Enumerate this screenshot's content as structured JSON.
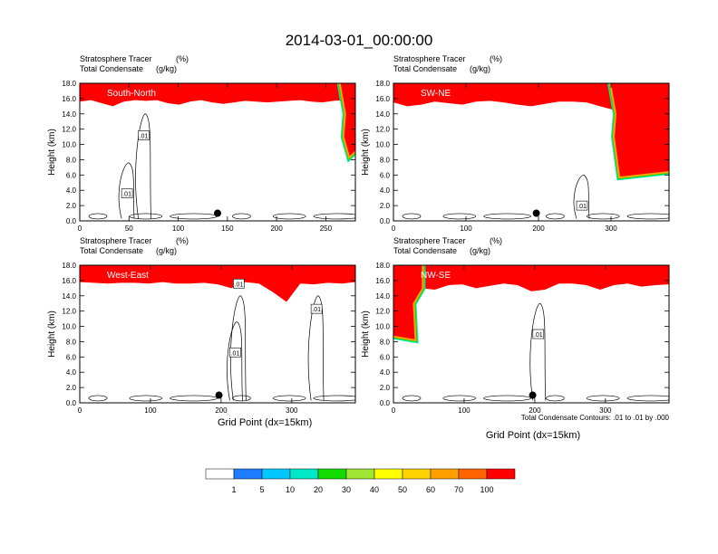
{
  "figure_title": "2014-03-01_00:00:00",
  "panel_header": {
    "line1_label": "Stratosphere Tracer",
    "line1_unit": "(%)",
    "line2_label": "Total Condensate",
    "line2_unit": "(g/kg)"
  },
  "y_axis_label": "Height (km)",
  "x_axis_label": "Grid Point (dx=15km)",
  "contour_note": "Total Condensate Contours: .01 to .01 by .000",
  "colors": [
    "#ffffff",
    "#1e7cff",
    "#00c8ff",
    "#00e8c8",
    "#28e678",
    "#14dc00",
    "#a0e632",
    "#ffff00",
    "#ffd200",
    "#ffa000",
    "#ff6400",
    "#ff0000"
  ],
  "colorbar": {
    "labels": [
      "1",
      "5",
      "10",
      "20",
      "30",
      "40",
      "50",
      "60",
      "70",
      "100"
    ]
  },
  "chart_data": [
    {
      "type": "heatmap",
      "title": "South-North",
      "x_ticks": [
        0,
        50,
        100,
        150,
        200,
        250
      ],
      "xlim": [
        0,
        280
      ],
      "y_ticks": [
        "0.0",
        "2.0",
        "4.0",
        "6.0",
        "8.0",
        "10.0",
        "12.0",
        "14.0",
        "16.0",
        "18.0"
      ],
      "ylim": [
        0,
        18
      ],
      "tracer_base_km": [
        15.6,
        15.8,
        15.4,
        15.0,
        15.6,
        15.8,
        15.7,
        15.8,
        15.4,
        15.2,
        15.6,
        15.8,
        15.5,
        15.3,
        15.5,
        15.7,
        15.6,
        15.5,
        15.6,
        15.7,
        15.8,
        15.6,
        15.5,
        15.7,
        15.8,
        15.8
      ],
      "intrusion": {
        "x": [
          265,
          280
        ],
        "bottom_km": 8.5
      },
      "contour_labels": [
        {
          "text": ".01",
          "x": 65,
          "y": 11.2
        },
        {
          "text": ".01",
          "x": 48,
          "y": 3.6
        }
      ],
      "marker": {
        "x": 140,
        "y": 1.0
      }
    },
    {
      "type": "heatmap",
      "title": "SW-NE",
      "x_ticks": [
        0,
        100,
        200,
        300
      ],
      "xlim": [
        0,
        380
      ],
      "y_ticks": [
        "0.0",
        "2.0",
        "4.0",
        "6.0",
        "8.0",
        "10.0",
        "12.0",
        "14.0",
        "16.0",
        "18.0"
      ],
      "ylim": [
        0,
        18
      ],
      "tracer_base_km": [
        15.5,
        15.0,
        15.2,
        15.6,
        15.4,
        15.2,
        15.6,
        15.7,
        15.5,
        15.2,
        15.0,
        15.3,
        15.6,
        15.6,
        15.5,
        15.0,
        14.5,
        15.2,
        15.4,
        15.2,
        15.3
      ],
      "intrusion": {
        "x": [
          300,
          380
        ],
        "bottom_km": 5.8
      },
      "contour_labels": [
        {
          "text": ".01",
          "x": 260,
          "y": 2.0
        }
      ],
      "marker": {
        "x": 197,
        "y": 1.0
      }
    },
    {
      "type": "heatmap",
      "title": "West-East",
      "x_ticks": [
        0,
        100,
        200,
        300
      ],
      "xlim": [
        0,
        390
      ],
      "y_ticks": [
        "0.0",
        "2.0",
        "4.0",
        "6.0",
        "8.0",
        "10.0",
        "12.0",
        "14.0",
        "16.0",
        "18.0"
      ],
      "ylim": [
        0,
        18
      ],
      "tracer_base_km": [
        15.8,
        15.7,
        15.6,
        15.7,
        15.7,
        15.6,
        15.8,
        15.6,
        15.6,
        15.7,
        15.5,
        15.0,
        15.8,
        15.6,
        14.5,
        13.2,
        15.6,
        15.5,
        15.7,
        15.6,
        15.8
      ],
      "contour_labels": [
        {
          "text": ".01",
          "x": 225,
          "y": 15.6
        },
        {
          "text": ".01",
          "x": 335,
          "y": 12.3
        },
        {
          "text": ".01",
          "x": 220,
          "y": 6.6
        }
      ],
      "marker": {
        "x": 197,
        "y": 1.0
      }
    },
    {
      "type": "heatmap",
      "title": "NW-SE",
      "x_ticks": [
        0,
        100,
        200,
        300
      ],
      "xlim": [
        0,
        390
      ],
      "y_ticks": [
        "0.0",
        "2.0",
        "4.0",
        "6.0",
        "8.0",
        "10.0",
        "12.0",
        "14.0",
        "16.0",
        "18.0"
      ],
      "ylim": [
        0,
        18
      ],
      "tracer_base_km": [
        15.4,
        15.2,
        15.0,
        14.8,
        15.4,
        15.5,
        15.0,
        15.3,
        15.6,
        15.4,
        14.6,
        14.8,
        15.6,
        15.6,
        15.4,
        14.8,
        15.4,
        15.6,
        15.2,
        15.4,
        15.5
      ],
      "intrusion": {
        "x": [
          0,
          30
        ],
        "bottom_km": 8.8
      },
      "contour_labels": [
        {
          "text": ".01",
          "x": 205,
          "y": 9.0
        }
      ],
      "marker": {
        "x": 197,
        "y": 1.0
      }
    }
  ]
}
